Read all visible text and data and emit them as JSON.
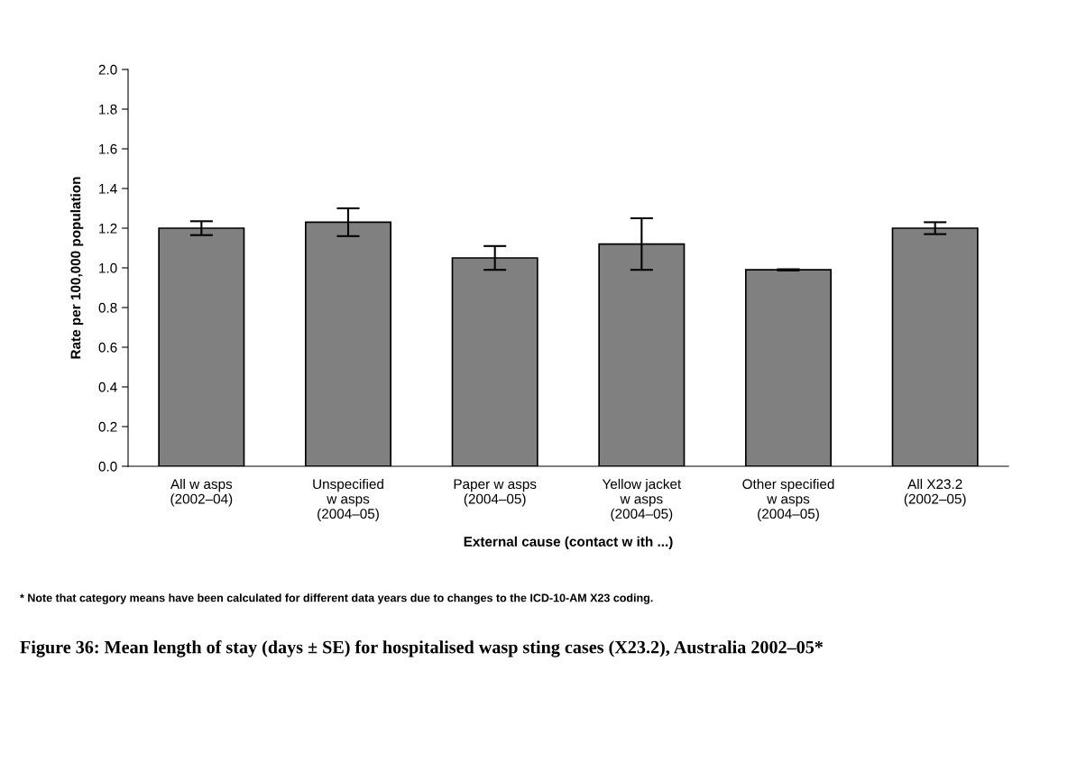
{
  "chart_data": {
    "type": "bar",
    "title": "Figure 36: Mean length of stay (days ± SE) for hospitalised wasp sting cases (X23.2), Australia 2002–05*",
    "xlabel": "External cause (contact w ith ...)",
    "ylabel": "Rate per 100,000 population",
    "categories": [
      "All w asps\n(2002–04)",
      "Unspecified\nw asps\n(2004–05)",
      "Paper w asps\n(2004–05)",
      "Yellow jacket\nw asps\n(2004–05)",
      "Other specified\nw asps\n(2004–05)",
      "All X23.2\n(2002–05)"
    ],
    "values": [
      1.2,
      1.23,
      1.05,
      1.12,
      0.99,
      1.2
    ],
    "errors": [
      0.035,
      0.07,
      0.06,
      0.13,
      0.003,
      0.03
    ],
    "color": "#808080",
    "ylim": [
      0,
      2.0
    ],
    "yticks": [
      {
        "value": 0,
        "label": "0.0"
      },
      {
        "value": 0.2,
        "label": "0.2"
      },
      {
        "value": 0.4,
        "label": "0.4"
      },
      {
        "value": 0.6,
        "label": "0.6"
      },
      {
        "value": 0.8,
        "label": "0.8"
      },
      {
        "value": 1.0,
        "label": "1.0"
      },
      {
        "value": 1.2,
        "label": "1.2"
      },
      {
        "value": 1.4,
        "label": "1.4"
      },
      {
        "value": 1.6,
        "label": "1.6"
      },
      {
        "value": 1.8,
        "label": "1.8"
      },
      {
        "value": 2.0,
        "label": "2.0"
      }
    ],
    "grid": false,
    "legend": false,
    "annotations": [
      "* Note that category means have been calculated for different data years due to changes to the ICD-10-AM X23 coding."
    ]
  }
}
